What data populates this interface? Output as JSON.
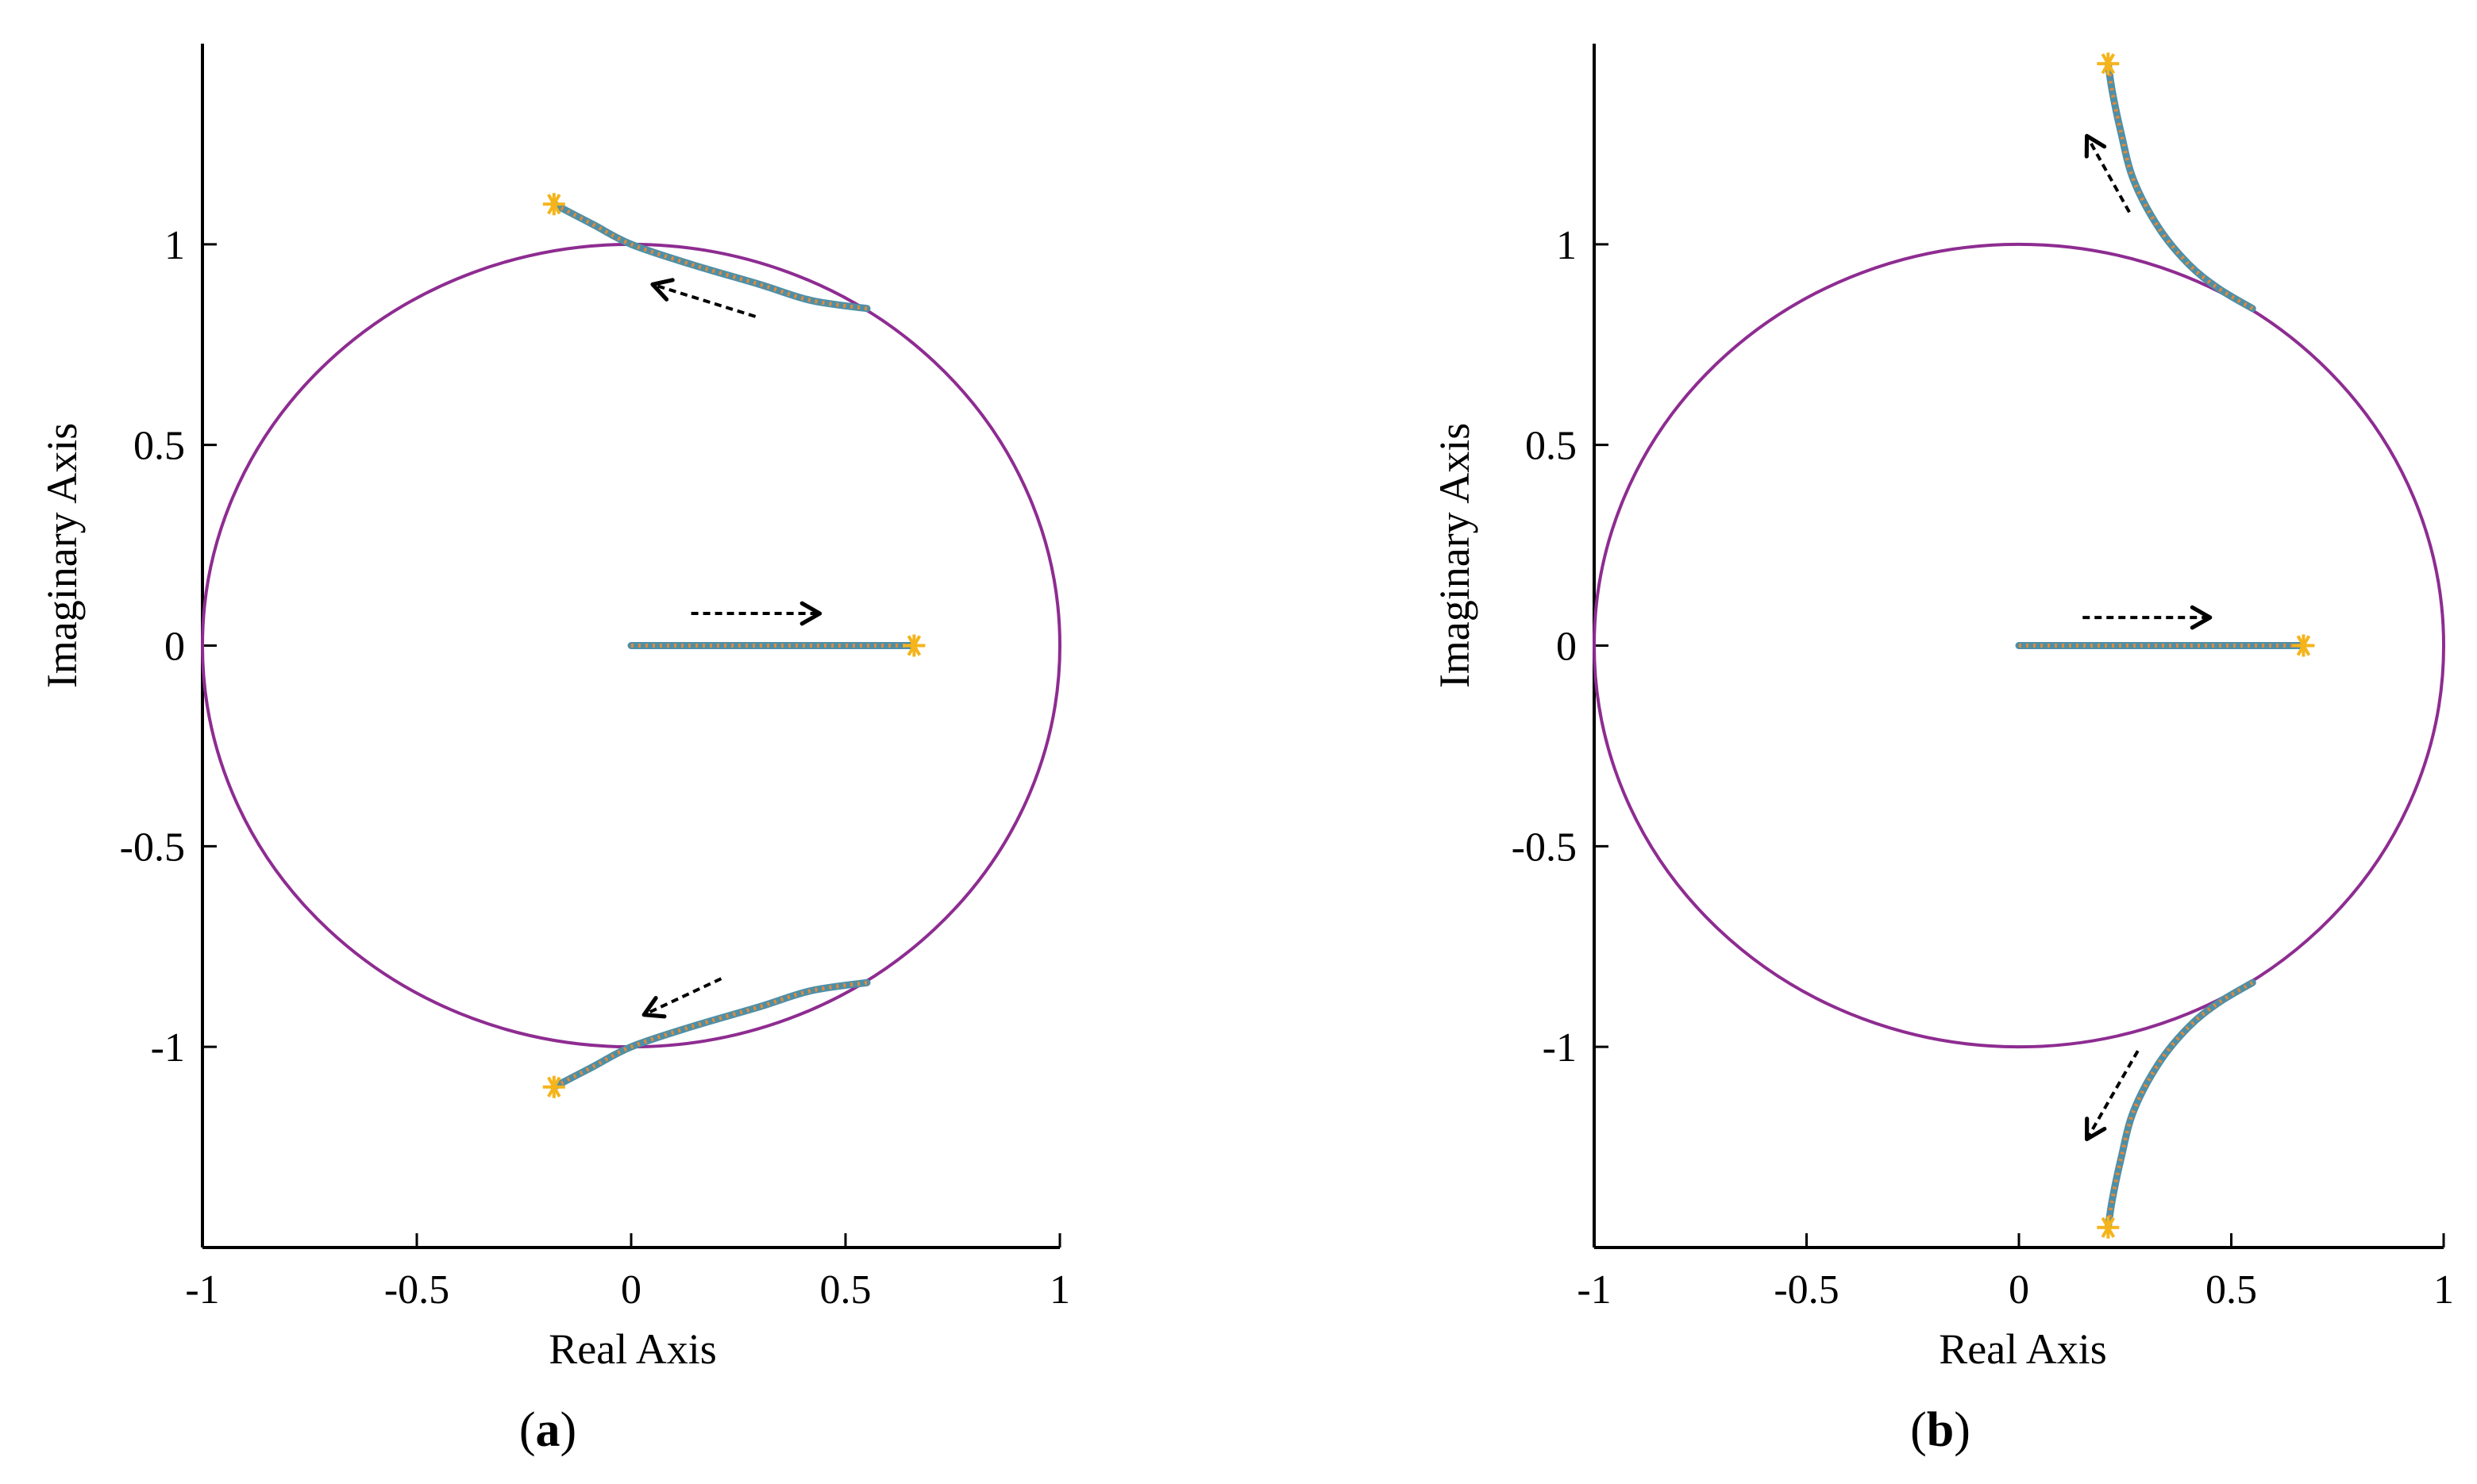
{
  "colors": {
    "circle": "#8e2c91",
    "locus_main": "#4f8fa6",
    "locus_dot": "#e08a3a",
    "marker": "#f5b41b",
    "arrow": "#000000",
    "axis": "#000000"
  },
  "chart_data": [
    {
      "type": "scatter",
      "panel_label": "a",
      "xlabel": "Real Axis",
      "ylabel": "Imaginary Axis",
      "xlim": [
        -1,
        1
      ],
      "ylim": [
        -1.5,
        1.5
      ],
      "xticks": [
        -1,
        -0.5,
        0,
        0.5,
        1
      ],
      "xtick_labels": [
        "-1",
        "-0.5",
        "0",
        "0.5",
        "1"
      ],
      "yticks": [
        -1,
        -0.5,
        0,
        0.5,
        1
      ],
      "ytick_labels": [
        "-1",
        "-0.5",
        "0",
        "0.5",
        "1"
      ],
      "grid": false,
      "unit_circle": true,
      "locus_branches": [
        {
          "points": [
            [
              0.55,
              0.84
            ],
            [
              0.42,
              0.86
            ],
            [
              0.3,
              0.9
            ],
            [
              0.14,
              0.95
            ],
            [
              0.0,
              1.0
            ],
            [
              -0.09,
              1.05
            ],
            [
              -0.18,
              1.1
            ]
          ]
        },
        {
          "points": [
            [
              0.55,
              -0.84
            ],
            [
              0.42,
              -0.86
            ],
            [
              0.3,
              -0.9
            ],
            [
              0.14,
              -0.95
            ],
            [
              0.0,
              -1.0
            ],
            [
              -0.09,
              -1.05
            ],
            [
              -0.18,
              -1.1
            ]
          ]
        },
        {
          "points": [
            [
              0.0,
              0.0
            ],
            [
              0.66,
              0.0
            ]
          ]
        }
      ],
      "end_markers": [
        [
          -0.18,
          1.1
        ],
        [
          -0.18,
          -1.1
        ],
        [
          0.66,
          0.0
        ]
      ],
      "arrows": [
        {
          "from": [
            0.29,
            0.82
          ],
          "to": [
            0.05,
            0.9
          ]
        },
        {
          "from": [
            0.21,
            -0.83
          ],
          "to": [
            0.03,
            -0.92
          ]
        },
        {
          "from": [
            0.14,
            0.08
          ],
          "to": [
            0.44,
            0.08
          ]
        }
      ]
    },
    {
      "type": "scatter",
      "panel_label": "b",
      "xlabel": "Real Axis",
      "ylabel": "Imaginary Axis",
      "xlim": [
        -1,
        1
      ],
      "ylim": [
        -1.5,
        1.5
      ],
      "xticks": [
        -1,
        -0.5,
        0,
        0.5,
        1
      ],
      "xtick_labels": [
        "-1",
        "-0.5",
        "0",
        "0.5",
        "1"
      ],
      "yticks": [
        -1,
        -0.5,
        0,
        0.5,
        1
      ],
      "ytick_labels": [
        "-1",
        "-0.5",
        "0",
        "0.5",
        "1"
      ],
      "grid": false,
      "unit_circle": true,
      "locus_branches": [
        {
          "points": [
            [
              0.55,
              0.84
            ],
            [
              0.47,
              0.89
            ],
            [
              0.4,
              0.95
            ],
            [
              0.33,
              1.04
            ],
            [
              0.27,
              1.16
            ],
            [
              0.24,
              1.28
            ],
            [
              0.22,
              1.38
            ],
            [
              0.21,
              1.45
            ]
          ]
        },
        {
          "points": [
            [
              0.55,
              -0.84
            ],
            [
              0.47,
              -0.89
            ],
            [
              0.4,
              -0.95
            ],
            [
              0.33,
              -1.04
            ],
            [
              0.27,
              -1.16
            ],
            [
              0.24,
              -1.28
            ],
            [
              0.22,
              -1.38
            ],
            [
              0.21,
              -1.45
            ]
          ]
        },
        {
          "points": [
            [
              0.0,
              0.0
            ],
            [
              0.67,
              0.0
            ]
          ]
        }
      ],
      "end_markers": [
        [
          0.21,
          1.45
        ],
        [
          0.21,
          -1.45
        ],
        [
          0.67,
          0.0
        ]
      ],
      "arrows": [
        {
          "from": [
            0.26,
            1.08
          ],
          "to": [
            0.16,
            1.27
          ]
        },
        {
          "from": [
            0.28,
            -1.01
          ],
          "to": [
            0.16,
            -1.23
          ]
        },
        {
          "from": [
            0.15,
            0.07
          ],
          "to": [
            0.45,
            0.07
          ]
        }
      ]
    }
  ]
}
